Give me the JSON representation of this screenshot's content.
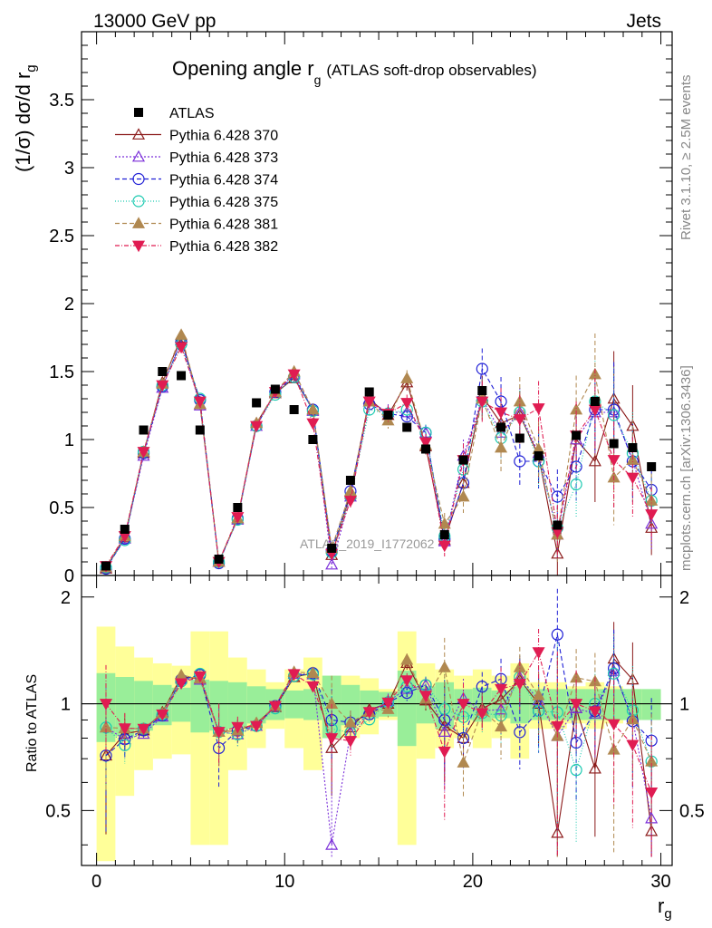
{
  "header": {
    "left": "13000 GeV pp",
    "right": "Jets"
  },
  "plot_title": {
    "main": "Opening angle r",
    "sub": "g",
    "suffix": "(ATLAS soft-drop observables)"
  },
  "y_axis_label": "(1/σ) dσ/d r",
  "y_axis_label_sub": "g",
  "ratio_axis_label": "Ratio to ATLAS",
  "x_axis_label": "r",
  "x_axis_label_sub": "g",
  "watermark": "ATLAS_2019_I1772062",
  "side_text_top": "Rivet 3.1.10, ≥ 2.5M events",
  "side_text_bottom": "mcplots.cern.ch [arXiv:1306.3436]",
  "chart_data": {
    "type": "scatter",
    "x": [
      0.5,
      1.5,
      2.5,
      3.5,
      4.5,
      5.5,
      6.5,
      7.5,
      8.5,
      9.5,
      10.5,
      11.5,
      12.5,
      13.5,
      14.5,
      15.5,
      16.5,
      17.5,
      18.5,
      19.5,
      20.5,
      21.5,
      22.5,
      23.5,
      24.5,
      25.5,
      26.5,
      27.5,
      28.5,
      29.5
    ],
    "xlim": [
      -0.8,
      30.6
    ],
    "ylim": [
      0,
      4.0
    ],
    "ratio_ylim": [
      0.35,
      2.3
    ],
    "x_ticks": [
      "0",
      "10",
      "20",
      "30"
    ],
    "y_ticks": [
      "0",
      "0.5",
      "1",
      "1.5",
      "2",
      "2.5",
      "3",
      "3.5"
    ],
    "ratio_ticks": [
      "0.5",
      "1",
      "2"
    ],
    "data": {
      "name": "ATLAS",
      "values": [
        0.07,
        0.34,
        1.07,
        1.5,
        1.47,
        1.07,
        0.12,
        0.5,
        1.27,
        1.37,
        1.22,
        1.0,
        0.2,
        0.7,
        1.35,
        1.18,
        1.09,
        0.93,
        0.3,
        0.85,
        1.36,
        1.09,
        1.01,
        0.88,
        0.37,
        1.03,
        1.28,
        0.97,
        0.94,
        0.8
      ]
    },
    "band_green": [
      0.22,
      0.19,
      0.16,
      0.13,
      0.11,
      0.17,
      0.16,
      0.15,
      0.12,
      0.1,
      0.09,
      0.1,
      0.2,
      0.13,
      0.09,
      0.08,
      0.24,
      0.12,
      0.15,
      0.1,
      0.11,
      0.09,
      0.12,
      0.1,
      0.1,
      0.1,
      0.1,
      0.1,
      0.1,
      0.1
    ],
    "band_yellow": [
      0.65,
      0.45,
      0.35,
      0.3,
      0.28,
      0.6,
      0.6,
      0.35,
      0.25,
      0.15,
      0.25,
      0.35,
      0.2,
      0.2,
      0.18,
      0.1,
      0.6,
      0.3,
      0.25,
      0.2,
      0.25,
      0.2,
      0.3,
      0.15,
      0.15,
      0.12,
      0.15,
      0.12,
      0.1,
      0.08
    ],
    "series": [
      {
        "name": "Pythia 6.428 370",
        "color": "#8b1a1a",
        "marker": "triangle-up-open",
        "dash": "",
        "values": [
          0.05,
          0.28,
          0.9,
          1.42,
          1.75,
          1.26,
          0.1,
          0.42,
          1.12,
          1.34,
          1.45,
          1.22,
          0.15,
          0.6,
          1.3,
          1.18,
          1.42,
          0.95,
          0.26,
          0.68,
          1.32,
          1.12,
          1.18,
          0.88,
          0.16,
          1.0,
          0.84,
          1.3,
          1.1,
          0.35
        ],
        "err": [
          0.02,
          0.03,
          0.03,
          0.03,
          0.03,
          0.03,
          0.02,
          0.03,
          0.03,
          0.03,
          0.03,
          0.04,
          0.04,
          0.05,
          0.05,
          0.06,
          0.06,
          0.06,
          0.08,
          0.12,
          0.15,
          0.18,
          0.18,
          0.2,
          0.2,
          0.25,
          0.3,
          0.35,
          0.3,
          0.2
        ]
      },
      {
        "name": "Pythia 6.428 373",
        "color": "#7b2fd9",
        "marker": "triangle-up-open",
        "dash": "2,2",
        "values": [
          0.06,
          0.27,
          0.88,
          1.38,
          1.73,
          1.25,
          0.1,
          0.41,
          1.1,
          1.35,
          1.48,
          1.21,
          0.08,
          0.58,
          1.28,
          1.2,
          1.2,
          1.05,
          0.25,
          0.88,
          1.3,
          1.05,
          1.2,
          0.9,
          0.3,
          1.0,
          1.2,
          1.2,
          0.85,
          0.38
        ],
        "err": [
          0.02,
          0.03,
          0.03,
          0.03,
          0.03,
          0.03,
          0.02,
          0.03,
          0.03,
          0.03,
          0.03,
          0.04,
          0.04,
          0.05,
          0.05,
          0.06,
          0.06,
          0.06,
          0.08,
          0.12,
          0.15,
          0.18,
          0.18,
          0.2,
          0.2,
          0.25,
          0.3,
          0.35,
          0.3,
          0.2
        ]
      },
      {
        "name": "Pythia 6.428 374",
        "color": "#1f1fd6",
        "marker": "circle-open",
        "dash": "5,3",
        "values": [
          0.05,
          0.27,
          0.9,
          1.39,
          1.72,
          1.29,
          0.09,
          0.42,
          1.1,
          1.35,
          1.46,
          1.22,
          0.18,
          0.62,
          1.26,
          1.19,
          1.17,
          1.05,
          0.27,
          0.68,
          1.52,
          1.28,
          0.84,
          0.84,
          0.58,
          0.8,
          1.22,
          1.22,
          0.84,
          0.63
        ],
        "err": [
          0.02,
          0.03,
          0.03,
          0.03,
          0.03,
          0.03,
          0.02,
          0.03,
          0.03,
          0.03,
          0.03,
          0.04,
          0.04,
          0.05,
          0.05,
          0.06,
          0.06,
          0.06,
          0.08,
          0.12,
          0.15,
          0.18,
          0.18,
          0.2,
          0.2,
          0.25,
          0.3,
          0.35,
          0.3,
          0.2
        ]
      },
      {
        "name": "Pythia 6.428 375",
        "color": "#1ac9b0",
        "marker": "circle-open",
        "dash": "1,2",
        "values": [
          0.06,
          0.26,
          0.91,
          1.4,
          1.7,
          1.3,
          0.1,
          0.41,
          1.1,
          1.33,
          1.46,
          1.21,
          0.17,
          0.58,
          1.22,
          1.19,
          1.22,
          1.05,
          0.29,
          0.78,
          1.28,
          1.01,
          1.2,
          0.84,
          0.35,
          0.67,
          1.28,
          1.18,
          0.9,
          0.55
        ],
        "err": [
          0.02,
          0.03,
          0.03,
          0.03,
          0.03,
          0.03,
          0.02,
          0.03,
          0.03,
          0.03,
          0.03,
          0.04,
          0.04,
          0.05,
          0.05,
          0.06,
          0.06,
          0.06,
          0.08,
          0.12,
          0.15,
          0.18,
          0.18,
          0.2,
          0.2,
          0.25,
          0.3,
          0.35,
          0.3,
          0.2
        ]
      },
      {
        "name": "Pythia 6.428 381",
        "color": "#b08850",
        "marker": "triangle-up-filled",
        "dash": "5,3",
        "values": [
          0.06,
          0.29,
          0.91,
          1.41,
          1.77,
          1.26,
          0.1,
          0.42,
          1.12,
          1.35,
          1.5,
          1.22,
          0.2,
          0.62,
          1.28,
          1.14,
          1.45,
          0.96,
          0.38,
          0.58,
          1.3,
          0.94,
          1.28,
          0.93,
          0.3,
          1.22,
          1.48,
          0.72,
          0.85,
          0.55
        ],
        "err": [
          0.02,
          0.03,
          0.03,
          0.03,
          0.03,
          0.03,
          0.02,
          0.03,
          0.03,
          0.03,
          0.03,
          0.04,
          0.04,
          0.05,
          0.05,
          0.06,
          0.06,
          0.06,
          0.08,
          0.12,
          0.15,
          0.18,
          0.18,
          0.2,
          0.2,
          0.25,
          0.3,
          0.35,
          0.3,
          0.2
        ]
      },
      {
        "name": "Pythia 6.428 382",
        "color": "#e01c52",
        "marker": "triangle-down-filled",
        "dash": "5,2,1,2",
        "values": [
          0.07,
          0.29,
          0.91,
          1.4,
          1.68,
          1.28,
          0.1,
          0.43,
          1.1,
          1.35,
          1.48,
          1.12,
          0.16,
          0.55,
          1.28,
          1.19,
          1.27,
          0.98,
          0.22,
          0.85,
          1.28,
          1.2,
          1.15,
          1.23,
          0.32,
          1.03,
          1.22,
          0.85,
          0.72,
          0.45
        ],
        "err": [
          0.02,
          0.03,
          0.03,
          0.03,
          0.03,
          0.03,
          0.02,
          0.03,
          0.03,
          0.03,
          0.03,
          0.04,
          0.04,
          0.05,
          0.05,
          0.06,
          0.06,
          0.06,
          0.08,
          0.12,
          0.15,
          0.18,
          0.18,
          0.2,
          0.2,
          0.25,
          0.3,
          0.35,
          0.3,
          0.2
        ]
      }
    ]
  }
}
